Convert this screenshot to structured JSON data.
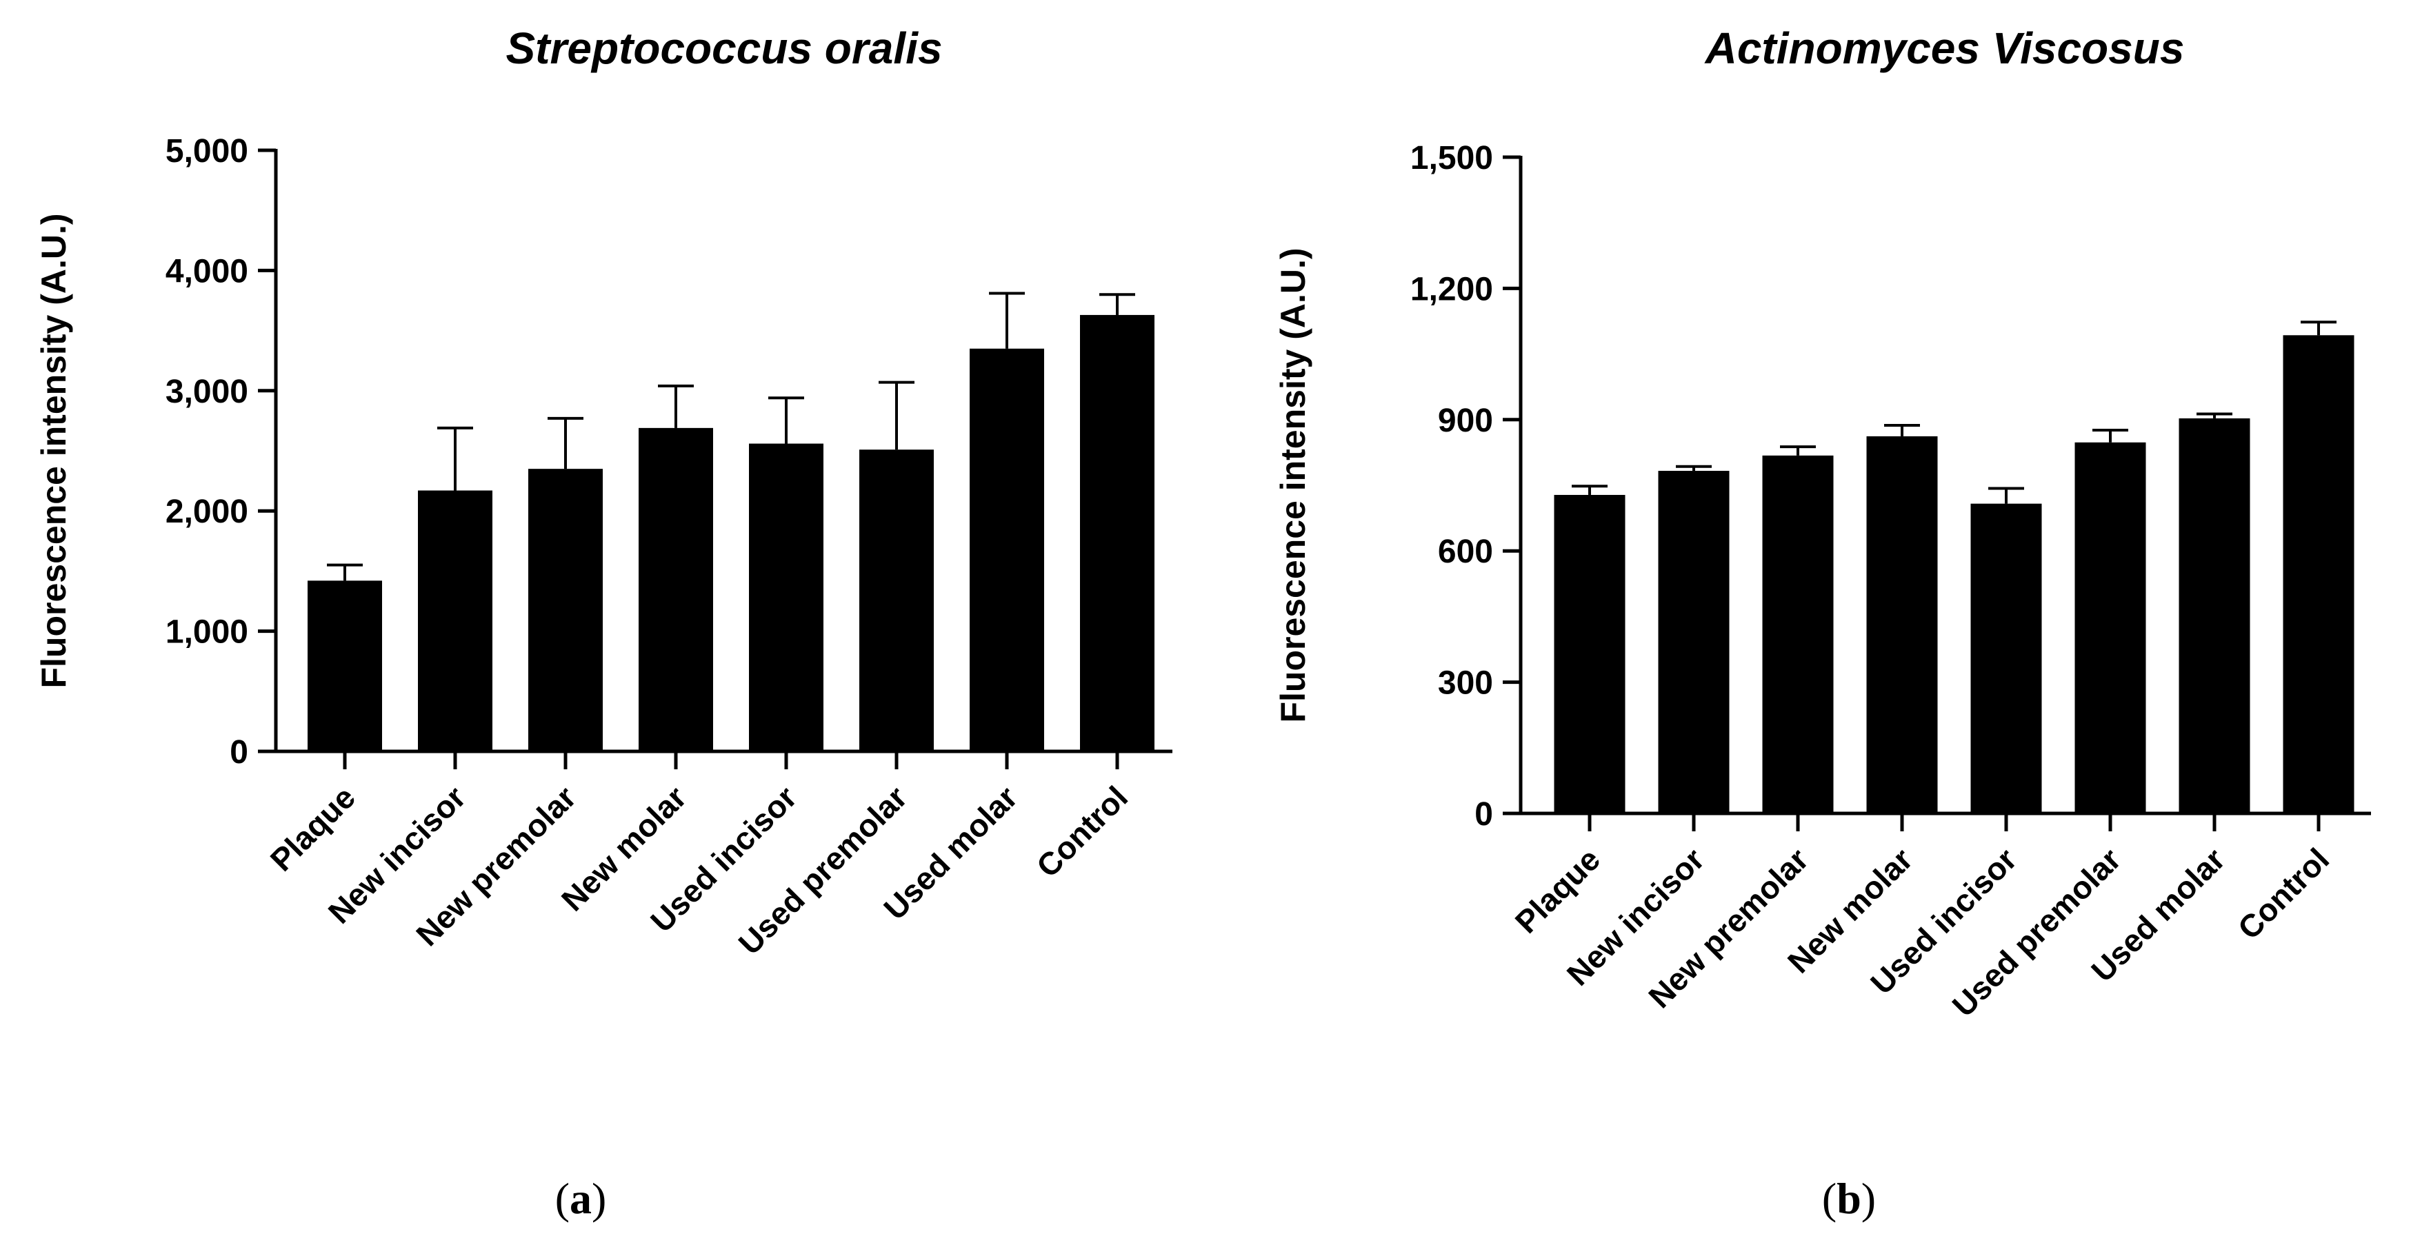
{
  "chart_data": [
    {
      "type": "bar",
      "title": "Streptococcus oralis",
      "panel_label": "(a)",
      "xlabel": "",
      "ylabel": "Fluorescence intensity (A.U.)",
      "ylim": [
        0,
        5000
      ],
      "yticks": [
        0,
        1000,
        2000,
        3000,
        4000,
        5000
      ],
      "ytick_labels": [
        "0",
        "1,000",
        "2,000",
        "3,000",
        "4,000",
        "5,000"
      ],
      "categories": [
        "Plaque",
        "New incisor",
        "New premolar",
        "New molar",
        "Used incisor",
        "Used premolar",
        "Used molar",
        "Control"
      ],
      "values": [
        1420,
        2170,
        2350,
        2690,
        2560,
        2510,
        3350,
        3630
      ],
      "errors": [
        130,
        520,
        420,
        350,
        380,
        560,
        460,
        170
      ],
      "grid": false
    },
    {
      "type": "bar",
      "title": "Actinomyces Viscosus",
      "panel_label": "(b)",
      "xlabel": "",
      "ylabel": "Fluorescence intensity (A.U.)",
      "ylim": [
        0,
        1500
      ],
      "yticks": [
        0,
        300,
        600,
        900,
        1200,
        1500
      ],
      "ytick_labels": [
        "0",
        "300",
        "600",
        "900",
        "1,200",
        "1,500"
      ],
      "categories": [
        "Plaque",
        "New incisor",
        "New premolar",
        "New molar",
        "Used incisor",
        "Used premolar",
        "Used molar",
        "Control"
      ],
      "values": [
        728,
        783,
        818,
        862,
        708,
        848,
        903,
        1093
      ],
      "errors": [
        20,
        10,
        20,
        25,
        35,
        28,
        10,
        30
      ],
      "grid": false
    }
  ]
}
